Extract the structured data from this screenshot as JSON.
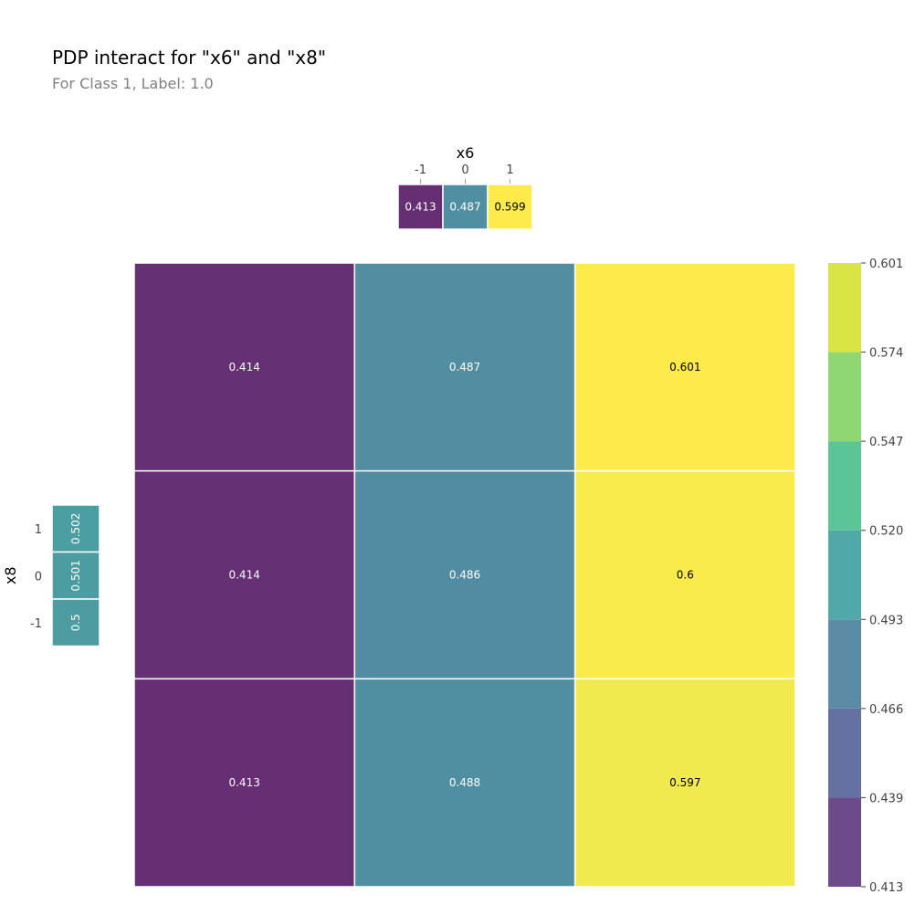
{
  "title": "PDP interact for \"x6\" and \"x8\"",
  "subtitle": "For Class 1, Label: 1.0",
  "chart_data": {
    "type": "heatmap",
    "title": "PDP interact for \"x6\" and \"x8\"",
    "subtitle": "For Class 1, Label: 1.0",
    "x_feature": "x6",
    "y_feature": "x8",
    "x_ticks": [
      "-1",
      "0",
      "1"
    ],
    "y_ticks": [
      "1",
      "0",
      "-1"
    ],
    "x_marginal": {
      "categories": [
        "-1",
        "0",
        "1"
      ],
      "values": [
        0.413,
        0.487,
        0.599
      ],
      "labels": [
        "0.413",
        "0.487",
        "0.599"
      ]
    },
    "y_marginal": {
      "categories": [
        "1",
        "0",
        "-1"
      ],
      "values": [
        0.502,
        0.501,
        0.5
      ],
      "labels": [
        "0.502",
        "0.501",
        "0.5"
      ]
    },
    "matrix": {
      "rows": [
        "1",
        "0",
        "-1"
      ],
      "cols": [
        "-1",
        "0",
        "1"
      ],
      "values": [
        [
          0.414,
          0.487,
          0.601
        ],
        [
          0.414,
          0.486,
          0.6
        ],
        [
          0.413,
          0.488,
          0.597
        ]
      ],
      "labels": [
        [
          "0.414",
          "0.487",
          "0.601"
        ],
        [
          "0.414",
          "0.486",
          "0.6"
        ],
        [
          "0.413",
          "0.488",
          "0.597"
        ]
      ]
    },
    "colorbar": {
      "ticks": [
        "0.413",
        "0.439",
        "0.466",
        "0.493",
        "0.520",
        "0.547",
        "0.574",
        "0.601"
      ],
      "range": [
        0.413,
        0.601
      ],
      "band_colors": [
        "#6c4a8c",
        "#6671a3",
        "#5c8ca5",
        "#51a8a9",
        "#5bc598",
        "#8fd773",
        "#d8e545"
      ]
    },
    "colormap": "viridis",
    "grid": false,
    "legend": "right"
  }
}
